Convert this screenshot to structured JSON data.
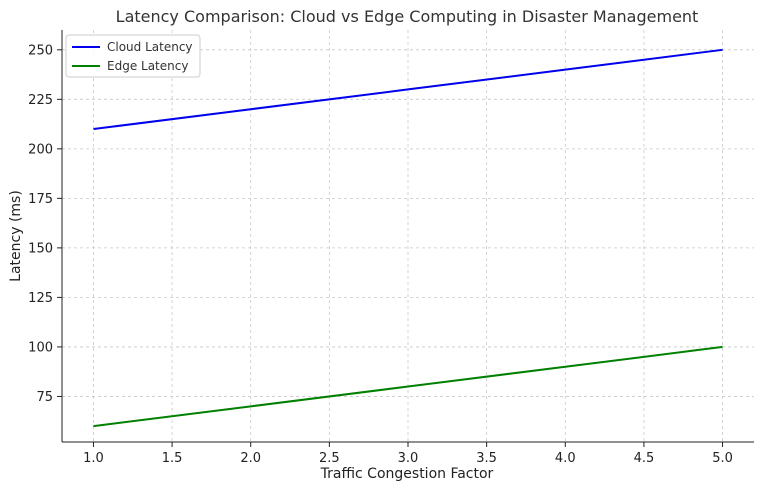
{
  "chart_data": {
    "type": "line",
    "title": "Latency Comparison: Cloud vs Edge Computing in Disaster Management",
    "xlabel": "Traffic Congestion Factor",
    "ylabel": "Latency (ms)",
    "x": [
      1.0,
      2.0,
      3.0,
      4.0,
      5.0
    ],
    "xticks": [
      "1.0",
      "1.5",
      "2.0",
      "2.5",
      "3.0",
      "3.5",
      "4.0",
      "4.5",
      "5.0"
    ],
    "xtick_values": [
      1.0,
      1.5,
      2.0,
      2.5,
      3.0,
      3.5,
      4.0,
      4.5,
      5.0
    ],
    "yticks": [
      "75",
      "100",
      "125",
      "150",
      "175",
      "200",
      "225",
      "250"
    ],
    "ytick_values": [
      75,
      100,
      125,
      150,
      175,
      200,
      225,
      250
    ],
    "xlim": [
      0.8,
      5.2
    ],
    "ylim": [
      52,
      260
    ],
    "grid": true,
    "legend_position": "top-left",
    "series": [
      {
        "name": "Cloud Latency",
        "color": "#0000ee",
        "values": [
          210,
          220,
          230,
          240,
          250
        ]
      },
      {
        "name": "Edge Latency",
        "color": "#008000",
        "values": [
          60,
          70,
          80,
          90,
          100
        ]
      }
    ]
  }
}
